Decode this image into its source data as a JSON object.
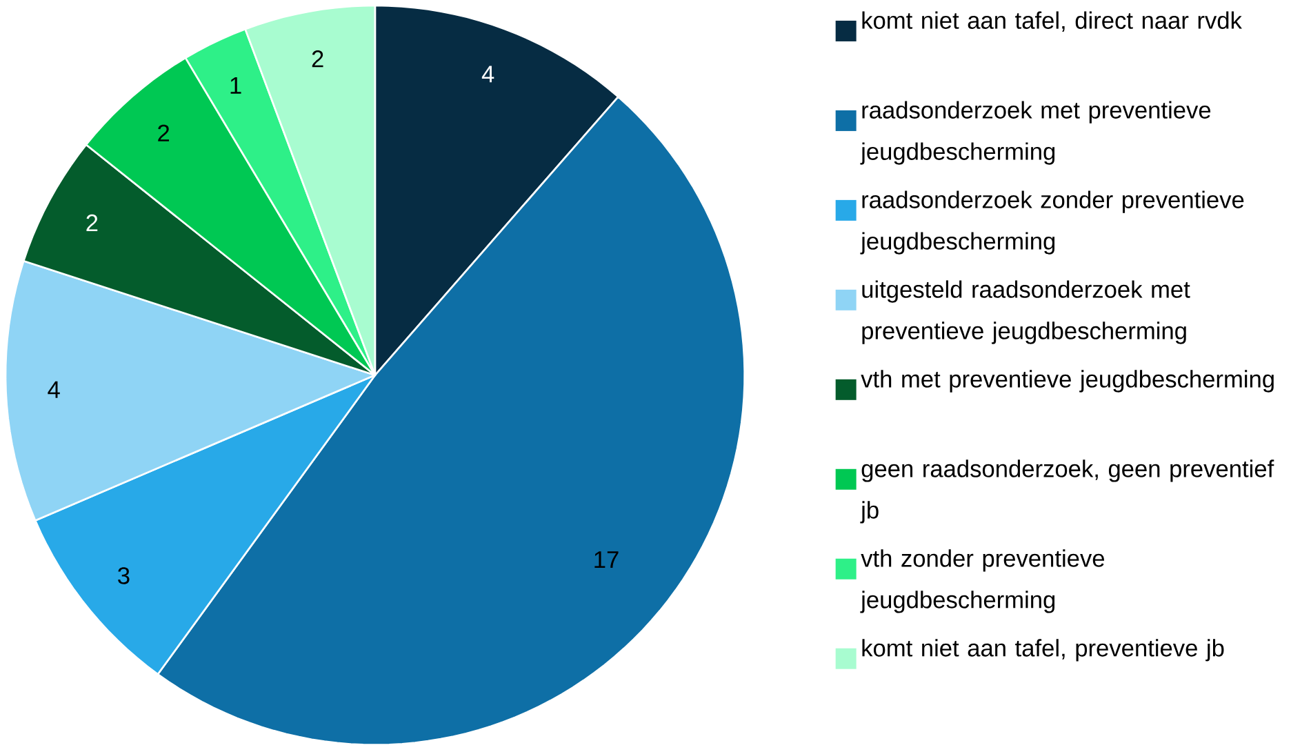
{
  "chart_data": {
    "type": "pie",
    "categories": [
      "komt niet aan tafel, direct naar rvdk",
      "raadsonderzoek met preventieve jeugdbescherming",
      "raadsonderzoek zonder preventieve jeugdbescherming",
      "uitgesteld raadsonderzoek met preventieve jeugdbescherming",
      "vth met preventieve jeugdbescherming",
      "geen raadsonderzoek, geen preventief jb",
      "vth zonder preventieve jeugdbescherming",
      "komt niet aan tafel, preventieve jb"
    ],
    "values": [
      4,
      17,
      3,
      4,
      2,
      2,
      1,
      2
    ],
    "colors": [
      "#062c43",
      "#0e6fa6",
      "#28a9e8",
      "#8fd4f5",
      "#045c2c",
      "#00c853",
      "#2ef088",
      "#a8fcd0"
    ],
    "data_labels": true,
    "legend": "right"
  }
}
